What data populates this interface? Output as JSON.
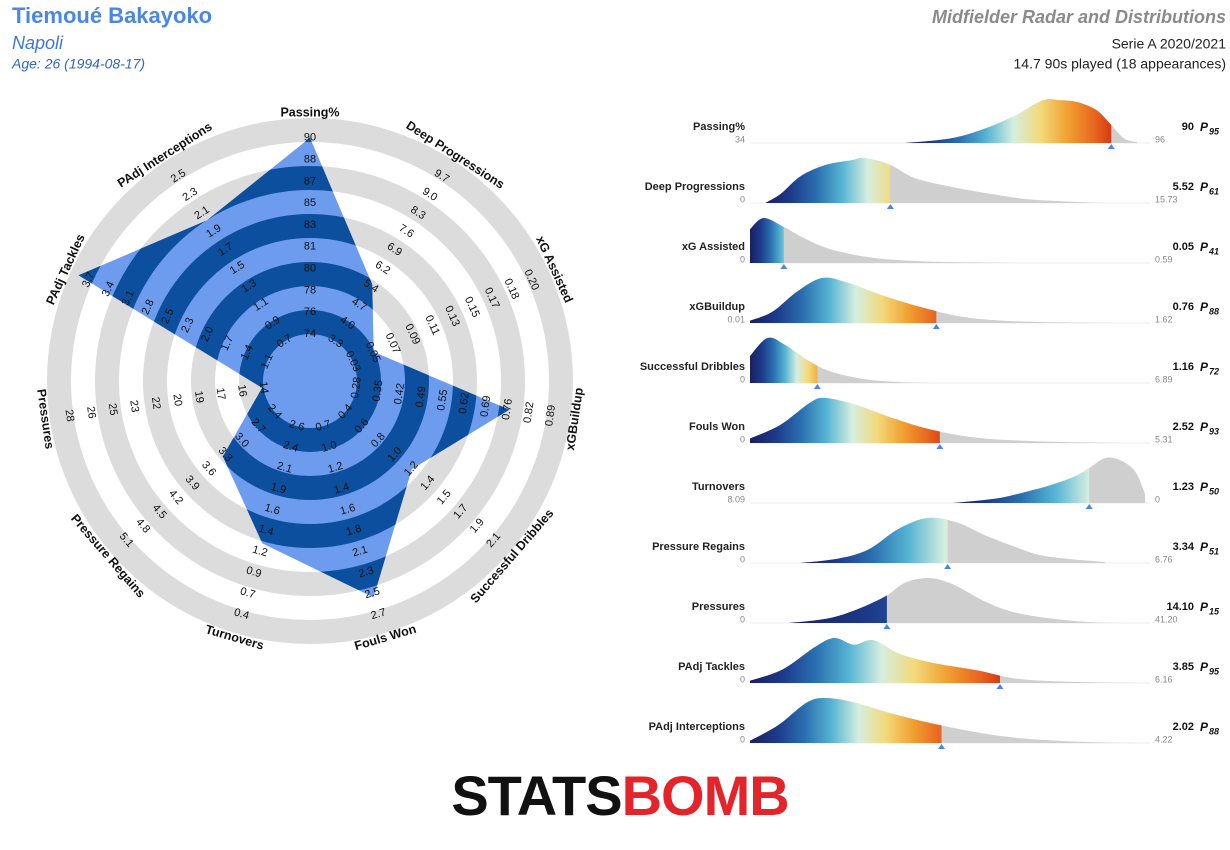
{
  "header": {
    "name": "Tiemoué Bakayoko",
    "team": "Napoli",
    "age": "Age: 26 (1994-08-17)",
    "title": "Midfielder Radar and Distributions",
    "competition": "Serie A 2020/2021",
    "played": "14.7 90s played (18 appearances)"
  },
  "logo": {
    "part1": "STATS",
    "part2": "BOMB"
  },
  "chart_data": [
    {
      "type": "radar",
      "fill": "#6d9cef",
      "band_color": "#0b4f9e",
      "ring_color": "#dcdcdc",
      "axes": [
        {
          "name": "Passing%",
          "ticks": [
            74,
            76,
            78,
            80,
            81,
            83,
            85,
            87,
            88,
            90
          ],
          "value": 90
        },
        {
          "name": "Deep Progressions",
          "ticks": [
            3.3,
            {
              "value": 4,
              "label": "4.0"
            },
            4.7,
            5.4,
            6.2,
            6.9,
            7.6,
            8.3,
            {
              "value": 9,
              "label": "9.0"
            },
            9.7
          ],
          "value": 5.52
        },
        {
          "name": "xG Assisted",
          "ticks": [
            0.03,
            0.05,
            0.07,
            0.09,
            0.11,
            0.13,
            0.15,
            0.17,
            0.18,
            {
              "value": 0.2,
              "label": "0.20"
            }
          ],
          "value": 0.05
        },
        {
          "name": "xGBuildup",
          "ticks": [
            0.28,
            0.35,
            0.42,
            0.49,
            0.55,
            0.62,
            0.69,
            0.76,
            0.82,
            0.89
          ],
          "value": 0.76
        },
        {
          "name": "Successful Dribbles",
          "ticks": [
            0.4,
            0.6,
            0.8,
            {
              "value": 1,
              "label": "1.0"
            },
            1.2,
            1.4,
            1.5,
            1.7,
            1.9,
            2.1
          ],
          "value": 1.16
        },
        {
          "name": "Fouls Won",
          "ticks": [
            0.7,
            {
              "value": 1,
              "label": "1.0"
            },
            1.2,
            1.4,
            1.6,
            1.8,
            2.1,
            2.3,
            2.5,
            2.7
          ],
          "value": 2.52
        },
        {
          "name": "Turnovers",
          "ticks": [
            2.6,
            2.4,
            2.1,
            1.9,
            1.6,
            1.4,
            1.2,
            0.9,
            0.7,
            0.4
          ],
          "value": 1.23
        },
        {
          "name": "Pressure Regains",
          "ticks": [
            2.4,
            2.7,
            {
              "value": 3,
              "label": "3.0"
            },
            3.3,
            3.6,
            3.9,
            4.2,
            4.5,
            4.8,
            5.1
          ],
          "value": 3.34
        },
        {
          "name": "Pressures",
          "ticks": [
            14,
            16,
            17,
            19,
            20,
            22,
            23,
            25,
            26,
            28
          ],
          "value": 14.1
        },
        {
          "name": "PAdj Tackles",
          "ticks": [
            1.1,
            1.4,
            1.7,
            {
              "value": 2,
              "label": "2.0"
            },
            2.3,
            2.5,
            2.8,
            3.1,
            3.4,
            3.7
          ],
          "value": 3.85
        },
        {
          "name": "PAdj Interceptions",
          "ticks": [
            0.7,
            0.9,
            1.1,
            1.3,
            1.5,
            1.7,
            1.9,
            2.1,
            2.3,
            2.5
          ],
          "value": 2.02
        }
      ]
    },
    {
      "type": "distribution",
      "percentile_label": "P",
      "grey": "#cfcfcf",
      "marker_color": "#4a86e8",
      "value_color": "#4a86e8",
      "colormap": [
        "#1a1f5e",
        "#1d3a8a",
        "#2a6fb0",
        "#56b4d3",
        "#d6eee0",
        "#f3d97a",
        "#f0a030",
        "#e8641f",
        "#c8200e"
      ],
      "metrics": [
        {
          "name": "Passing%",
          "xlim": [
            34,
            96
          ],
          "xticks": [
            34,
            96
          ],
          "value": 90,
          "percentile": 95,
          "percentile_color": "#8b0000",
          "curve": {
            "x": [
              58,
              65,
              70,
              75,
              78,
              80,
              82,
              84,
              86,
              88,
              90,
              92,
              94
            ],
            "y": [
              0,
              0.1,
              0.3,
              0.6,
              0.85,
              0.97,
              0.95,
              0.93,
              0.85,
              0.7,
              0.4,
              0.1,
              0.02
            ]
          }
        },
        {
          "name": "Deep Progressions",
          "xlim": [
            0,
            15.73
          ],
          "xticks": [
            0,
            15.73
          ],
          "value": 5.52,
          "percentile": 61,
          "percentile_color": "#c77a00",
          "curve": {
            "x": [
              0.6,
              1.2,
              2,
              3,
              4,
              4.5,
              5.5,
              6.5,
              8,
              9.5,
              11,
              13,
              14
            ],
            "y": [
              0,
              0.2,
              0.6,
              0.85,
              0.95,
              1,
              0.85,
              0.55,
              0.35,
              0.2,
              0.08,
              0.02,
              0
            ]
          }
        },
        {
          "name": "xG Assisted",
          "xlim": [
            0,
            0.59
          ],
          "xticks": [
            0,
            0.59
          ],
          "value": 0.05,
          "percentile": 41,
          "percentile_color": "#1a9cb0",
          "curve": {
            "x": [
              0,
              0.02,
              0.05,
              0.08,
              0.12,
              0.18,
              0.25,
              0.35,
              0.4
            ],
            "y": [
              0.75,
              1,
              0.8,
              0.55,
              0.3,
              0.12,
              0.04,
              0.01,
              0
            ]
          }
        },
        {
          "name": "xGBuildup",
          "xlim": [
            0.01,
            1.62
          ],
          "xticks": [
            0.01,
            1.62
          ],
          "value": 0.76,
          "percentile": 88,
          "percentile_color": "#b22222",
          "curve": {
            "x": [
              0.01,
              0.1,
              0.2,
              0.3,
              0.4,
              0.55,
              0.7,
              0.85,
              1,
              1.2,
              1.5
            ],
            "y": [
              0.05,
              0.25,
              0.7,
              1,
              0.9,
              0.6,
              0.35,
              0.15,
              0.06,
              0.02,
              0
            ]
          }
        },
        {
          "name": "Successful Dribbles",
          "xlim": [
            0,
            6.89
          ],
          "xticks": [
            0,
            6.89
          ],
          "value": 1.16,
          "percentile": 72,
          "percentile_color": "#d2691e",
          "curve": {
            "x": [
              0,
              0.3,
              0.6,
              1,
              1.4,
              2,
              2.6,
              3.2
            ],
            "y": [
              0.6,
              1,
              0.85,
              0.5,
              0.25,
              0.08,
              0.02,
              0
            ]
          }
        },
        {
          "name": "Fouls Won",
          "xlim": [
            0,
            5.31
          ],
          "xticks": [
            0,
            5.31
          ],
          "value": 2.52,
          "percentile": 93,
          "percentile_color": "#a52a2a",
          "curve": {
            "x": [
              0,
              0.4,
              0.8,
              1,
              1.4,
              1.9,
              2.4,
              3,
              3.8,
              5
            ],
            "y": [
              0.1,
              0.4,
              0.9,
              1,
              0.85,
              0.55,
              0.3,
              0.12,
              0.04,
              0
            ]
          }
        },
        {
          "name": "Turnovers",
          "xlim": [
            8.09,
            0
          ],
          "xticks": [
            8.09,
            0
          ],
          "value": 1.23,
          "percentile": 50,
          "percentile_color": "#9ab84a",
          "curve": {
            "x": [
              4,
              3.5,
              3,
              2.5,
              2,
              1.5,
              1.2,
              0.9,
              0.6,
              0.3,
              0.1
            ],
            "y": [
              0,
              0.05,
              0.12,
              0.25,
              0.4,
              0.6,
              0.8,
              1,
              0.95,
              0.7,
              0.2
            ]
          }
        },
        {
          "name": "Pressure Regains",
          "xlim": [
            0,
            6.76
          ],
          "xticks": [
            0,
            6.76
          ],
          "value": 3.34,
          "percentile": 51,
          "percentile_color": "#d4c040",
          "curve": {
            "x": [
              0.85,
              1.5,
              2,
              2.5,
              3,
              3.5,
              4,
              4.5,
              5,
              6
            ],
            "y": [
              0,
              0.1,
              0.3,
              0.75,
              1,
              0.9,
              0.6,
              0.35,
              0.15,
              0.02
            ]
          }
        },
        {
          "name": "Pressures",
          "xlim": [
            0,
            41.2
          ],
          "xticks": [
            0,
            {
              "value": 41.2,
              "label": "41.20"
            }
          ],
          "value": 14.1,
          "value_label": "14.10",
          "percentile": 15,
          "percentile_color": "#1c2c80",
          "curve": {
            "x": [
              4,
              8,
              11,
              14,
              16,
              18.5,
              21,
              24,
              27,
              31,
              35,
              39
            ],
            "y": [
              0,
              0.1,
              0.3,
              0.6,
              0.9,
              1,
              0.85,
              0.5,
              0.25,
              0.1,
              0.02,
              0
            ]
          }
        },
        {
          "name": "PAdj Tackles",
          "xlim": [
            0,
            6.16
          ],
          "xticks": [
            0,
            6.16
          ],
          "value": 3.85,
          "percentile": 95,
          "percentile_color": "#8b0000",
          "curve": {
            "x": [
              0,
              0.5,
              1,
              1.3,
              1.6,
              1.9,
              2.3,
              2.8,
              3.5,
              4,
              4.5,
              5.5,
              6
            ],
            "y": [
              0.05,
              0.3,
              0.8,
              1,
              0.85,
              0.95,
              0.65,
              0.45,
              0.28,
              0.12,
              0.05,
              0.01,
              0
            ]
          }
        },
        {
          "name": "PAdj Interceptions",
          "xlim": [
            0,
            4.22
          ],
          "xticks": [
            0,
            4.22
          ],
          "value": 2.02,
          "percentile": 88,
          "percentile_color": "#b22222",
          "curve": {
            "x": [
              0,
              0.3,
              0.6,
              0.8,
              1.1,
              1.5,
              2,
              2.5,
              3,
              3.6,
              4.1
            ],
            "y": [
              0.05,
              0.4,
              0.9,
              1,
              0.9,
              0.65,
              0.4,
              0.2,
              0.08,
              0.02,
              0
            ]
          }
        }
      ]
    }
  ]
}
